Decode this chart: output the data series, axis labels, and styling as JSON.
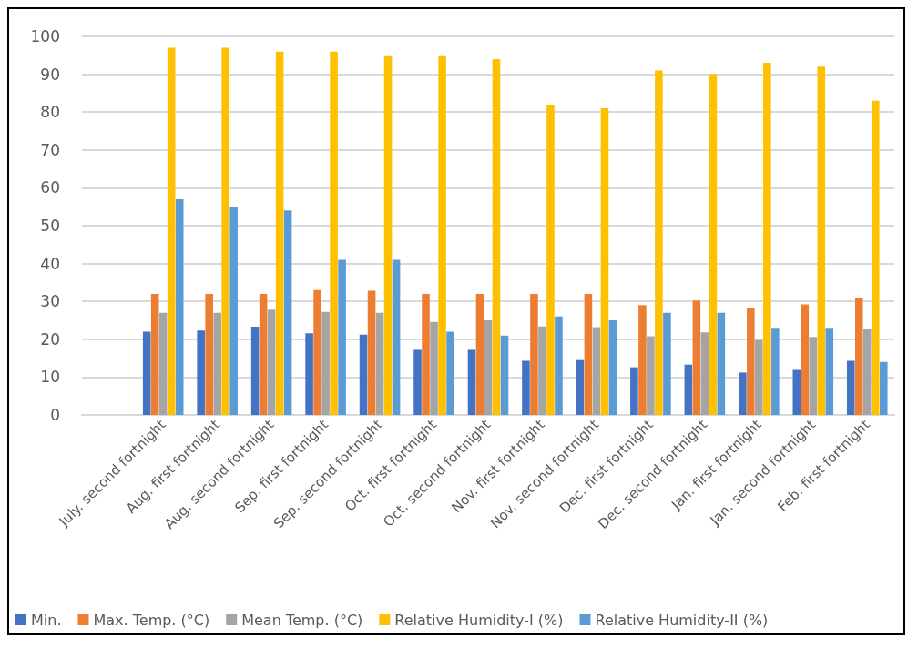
{
  "chart_data": {
    "type": "bar",
    "categories": [
      null,
      "July. second fortnight",
      "Aug. first fortnight",
      "Aug. second fortnight",
      "Sep. first fortnight",
      "Sep. second fortnight",
      "Oct. first fortnight",
      "Oct. second fortnight",
      "Nov. first fortnight",
      "Nov. second fortnight",
      "Dec. first fortnight",
      "Dec. second fortnight",
      "Jan. first fortnight",
      "Jan. second fortnight",
      "Feb. first fortnight"
    ],
    "series": [
      {
        "name": "Min.",
        "color": "#4472c4",
        "values": [
          0,
          22,
          22.3,
          23.3,
          21.6,
          21.2,
          17.2,
          17.2,
          14.3,
          14.5,
          12.6,
          13.3,
          11.2,
          11.9,
          14.3
        ]
      },
      {
        "name": "Max. Temp. (°C)",
        "color": "#ed7d31",
        "values": [
          null,
          32,
          32,
          32,
          33,
          32.8,
          32,
          32,
          32,
          32,
          29,
          30.2,
          28.2,
          29.2,
          31
        ]
      },
      {
        "name": "Mean Temp. (°C)",
        "color": "#a5a5a5",
        "values": [
          null,
          27,
          27,
          27.8,
          27.2,
          27,
          24.6,
          25,
          23.4,
          23.2,
          20.8,
          21.8,
          19.8,
          20.6,
          22.6
        ]
      },
      {
        "name": "Relative Humidity-I (%)",
        "color": "#ffc000",
        "values": [
          null,
          97,
          97,
          96,
          96,
          95,
          95,
          94,
          82,
          81,
          91,
          90,
          93,
          92,
          83
        ]
      },
      {
        "name": "Relative Humidity-II (%)",
        "color": "#5b9bd5",
        "values": [
          null,
          57,
          55,
          54,
          41,
          41,
          22,
          21,
          26,
          25,
          27,
          27,
          23,
          23,
          14
        ]
      }
    ],
    "ylim": [
      0,
      100
    ],
    "yticks": [
      0,
      10,
      20,
      30,
      40,
      50,
      60,
      70,
      80,
      90,
      100
    ],
    "grid": "y",
    "legend": "bottom left"
  }
}
